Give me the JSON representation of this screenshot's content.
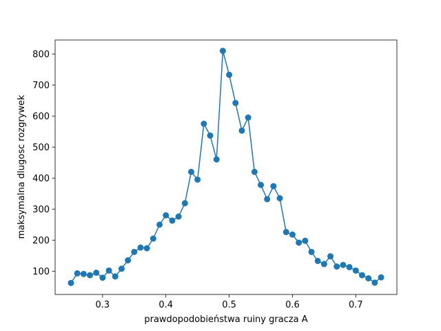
{
  "chart_data": {
    "type": "line",
    "title": "",
    "xlabel": "prawdopodobieństwa ruiny gracza A",
    "ylabel": "maksymalna dlugosc rozgrywek",
    "xlim": [
      0.225,
      0.765
    ],
    "ylim": [
      25,
      845
    ],
    "grid": false,
    "x_ticks": [
      0.3,
      0.4,
      0.5,
      0.6,
      0.7
    ],
    "x_tick_labels": [
      "0.3",
      "0.4",
      "0.5",
      "0.6",
      "0.7"
    ],
    "y_ticks": [
      100,
      200,
      300,
      400,
      500,
      600,
      700,
      800
    ],
    "y_tick_labels": [
      "100",
      "200",
      "300",
      "400",
      "500",
      "600",
      "700",
      "800"
    ],
    "colors": {
      "series": "#1f77b4"
    },
    "series": [
      {
        "marker": "circle",
        "x": [
          0.25,
          0.26,
          0.27,
          0.28,
          0.29,
          0.3,
          0.31,
          0.32,
          0.33,
          0.34,
          0.35,
          0.36,
          0.37,
          0.38,
          0.39,
          0.4,
          0.41,
          0.42,
          0.43,
          0.44,
          0.45,
          0.46,
          0.47,
          0.48,
          0.49,
          0.5,
          0.51,
          0.52,
          0.53,
          0.54,
          0.55,
          0.56,
          0.57,
          0.58,
          0.59,
          0.6,
          0.61,
          0.62,
          0.63,
          0.64,
          0.65,
          0.66,
          0.67,
          0.68,
          0.69,
          0.7,
          0.71,
          0.72,
          0.73,
          0.74
        ],
        "y": [
          62,
          93,
          91,
          87,
          95,
          79,
          102,
          83,
          108,
          135,
          162,
          176,
          174,
          205,
          250,
          280,
          263,
          276,
          319,
          420,
          395,
          575,
          537,
          460,
          810,
          733,
          642,
          553,
          595,
          420,
          378,
          332,
          374,
          335,
          226,
          218,
          192,
          198,
          162,
          133,
          123,
          148,
          115,
          120,
          113,
          102,
          87,
          77,
          63,
          80
        ]
      }
    ]
  }
}
